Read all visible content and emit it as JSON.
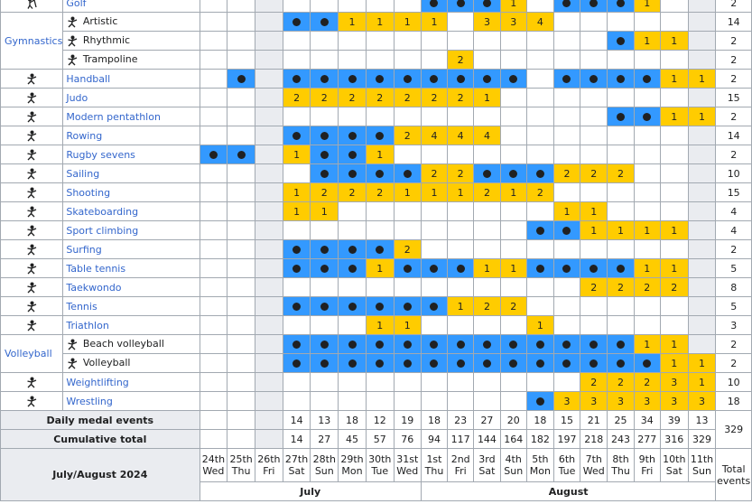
{
  "days": [
    {
      "d": "24th",
      "w": "Wed"
    },
    {
      "d": "25th",
      "w": "Thu"
    },
    {
      "d": "26th",
      "w": "Fri"
    },
    {
      "d": "27th",
      "w": "Sat"
    },
    {
      "d": "28th",
      "w": "Sun"
    },
    {
      "d": "29th",
      "w": "Mon"
    },
    {
      "d": "30th",
      "w": "Tue"
    },
    {
      "d": "31st",
      "w": "Wed"
    },
    {
      "d": "1st",
      "w": "Thu"
    },
    {
      "d": "2nd",
      "w": "Fri"
    },
    {
      "d": "3rd",
      "w": "Sat"
    },
    {
      "d": "4th",
      "w": "Sun"
    },
    {
      "d": "5th",
      "w": "Mon"
    },
    {
      "d": "6th",
      "w": "Tue"
    },
    {
      "d": "7th",
      "w": "Wed"
    },
    {
      "d": "8th",
      "w": "Thu"
    },
    {
      "d": "9th",
      "w": "Fri"
    },
    {
      "d": "10th",
      "w": "Sat"
    },
    {
      "d": "11th",
      "w": "Sun"
    }
  ],
  "gray_columns": [
    2,
    18
  ],
  "colors": {
    "event": "#3399ff",
    "final": "#ffcc00",
    "gray": "#eaecf0",
    "link": "#3366cc"
  },
  "rows": [
    {
      "name": "Golf",
      "icon": "golf-icon",
      "total": "2",
      "cells": [
        "",
        "",
        "",
        "",
        "",
        "",
        "",
        "",
        "e",
        "e",
        "e",
        "1",
        "",
        "e",
        "e",
        "e",
        "1",
        "",
        ""
      ]
    },
    {
      "group": "Gymnastics",
      "name": "Artistic",
      "icon": "gymnastics-artistic-icon",
      "total": "14",
      "cells": [
        "",
        "",
        "",
        "e",
        "e",
        "1",
        "1",
        "1",
        "1",
        "",
        "3",
        "3",
        "4",
        "",
        "",
        "",
        "",
        "",
        ""
      ]
    },
    {
      "group": "Gymnastics",
      "name": "Rhythmic",
      "icon": "gymnastics-rhythmic-icon",
      "total": "2",
      "cells": [
        "",
        "",
        "",
        "",
        "",
        "",
        "",
        "",
        "",
        "",
        "",
        "",
        "",
        "",
        "",
        "e",
        "1",
        "1",
        ""
      ]
    },
    {
      "group": "Gymnastics",
      "name": "Trampoline",
      "icon": "trampoline-icon",
      "total": "2",
      "cells": [
        "",
        "",
        "",
        "",
        "",
        "",
        "",
        "",
        "",
        "2",
        "",
        "",
        "",
        "",
        "",
        "",
        "",
        "",
        ""
      ]
    },
    {
      "name": "Handball",
      "icon": "handball-icon",
      "total": "2",
      "cells": [
        "",
        "e",
        "",
        "e",
        "e",
        "e",
        "e",
        "e",
        "e",
        "e",
        "e",
        "e",
        "",
        "e",
        "e",
        "e",
        "e",
        "1",
        "1"
      ]
    },
    {
      "name": "Judo",
      "icon": "judo-icon",
      "total": "15",
      "cells": [
        "",
        "",
        "",
        "2",
        "2",
        "2",
        "2",
        "2",
        "2",
        "2",
        "1",
        "",
        "",
        "",
        "",
        "",
        "",
        "",
        ""
      ]
    },
    {
      "name": "Modern pentathlon",
      "icon": "modern-pentathlon-icon",
      "total": "2",
      "cells": [
        "",
        "",
        "",
        "",
        "",
        "",
        "",
        "",
        "",
        "",
        "",
        "",
        "",
        "",
        "",
        "e",
        "e",
        "1",
        "1"
      ]
    },
    {
      "name": "Rowing",
      "icon": "rowing-icon",
      "total": "14",
      "cells": [
        "",
        "",
        "",
        "e",
        "e",
        "e",
        "e",
        "2",
        "4",
        "4",
        "4",
        "",
        "",
        "",
        "",
        "",
        "",
        "",
        ""
      ]
    },
    {
      "name": "Rugby sevens",
      "icon": "rugby-icon",
      "total": "2",
      "cells": [
        "e",
        "e",
        "",
        "1",
        "e",
        "e",
        "1",
        "",
        "",
        "",
        "",
        "",
        "",
        "",
        "",
        "",
        "",
        "",
        ""
      ]
    },
    {
      "name": "Sailing",
      "icon": "sailing-icon",
      "total": "10",
      "cells": [
        "",
        "",
        "",
        "",
        "e",
        "e",
        "e",
        "e",
        "2",
        "2",
        "e",
        "e",
        "e",
        "2",
        "2",
        "2",
        "",
        "",
        ""
      ]
    },
    {
      "name": "Shooting",
      "icon": "shooting-icon",
      "total": "15",
      "cells": [
        "",
        "",
        "",
        "1",
        "2",
        "2",
        "2",
        "1",
        "1",
        "1",
        "2",
        "1",
        "2",
        "",
        "",
        "",
        "",
        "",
        ""
      ]
    },
    {
      "name": "Skateboarding",
      "icon": "skateboarding-icon",
      "total": "4",
      "cells": [
        "",
        "",
        "",
        "1",
        "1",
        "",
        "",
        "",
        "",
        "",
        "",
        "",
        "",
        "1",
        "1",
        "",
        "",
        "",
        ""
      ]
    },
    {
      "name": "Sport climbing",
      "icon": "climbing-icon",
      "total": "4",
      "cells": [
        "",
        "",
        "",
        "",
        "",
        "",
        "",
        "",
        "",
        "",
        "",
        "",
        "e",
        "e",
        "1",
        "1",
        "1",
        "1",
        ""
      ]
    },
    {
      "name": "Surfing",
      "icon": "surfing-icon",
      "total": "2",
      "cells": [
        "",
        "",
        "",
        "e",
        "e",
        "e",
        "e",
        "2",
        "",
        "",
        "",
        "",
        "",
        "",
        "",
        "",
        "",
        "",
        ""
      ]
    },
    {
      "name": "Table tennis",
      "icon": "table-tennis-icon",
      "total": "5",
      "cells": [
        "",
        "",
        "",
        "e",
        "e",
        "e",
        "1",
        "e",
        "e",
        "e",
        "1",
        "1",
        "e",
        "e",
        "e",
        "e",
        "1",
        "1",
        ""
      ]
    },
    {
      "name": "Taekwondo",
      "icon": "taekwondo-icon",
      "total": "8",
      "cells": [
        "",
        "",
        "",
        "",
        "",
        "",
        "",
        "",
        "",
        "",
        "",
        "",
        "",
        "",
        "2",
        "2",
        "2",
        "2",
        ""
      ]
    },
    {
      "name": "Tennis",
      "icon": "tennis-icon",
      "total": "5",
      "cells": [
        "",
        "",
        "",
        "e",
        "e",
        "e",
        "e",
        "e",
        "e",
        "1",
        "2",
        "2",
        "",
        "",
        "",
        "",
        "",
        "",
        ""
      ]
    },
    {
      "name": "Triathlon",
      "icon": "triathlon-icon",
      "total": "3",
      "cells": [
        "",
        "",
        "",
        "",
        "",
        "",
        "1",
        "1",
        "",
        "",
        "",
        "",
        "1",
        "",
        "",
        "",
        "",
        "",
        ""
      ]
    },
    {
      "group": "Volleyball",
      "name": "Beach volleyball",
      "icon": "beach-volleyball-icon",
      "total": "2",
      "cells": [
        "",
        "",
        "",
        "e",
        "e",
        "e",
        "e",
        "e",
        "e",
        "e",
        "e",
        "e",
        "e",
        "e",
        "e",
        "e",
        "1",
        "1",
        ""
      ]
    },
    {
      "group": "Volleyball",
      "name": "Volleyball",
      "icon": "volleyball-icon",
      "total": "2",
      "cells": [
        "",
        "",
        "",
        "e",
        "e",
        "e",
        "e",
        "e",
        "e",
        "e",
        "e",
        "e",
        "e",
        "e",
        "e",
        "e",
        "e",
        "1",
        "1"
      ]
    },
    {
      "name": "Weightlifting",
      "icon": "weightlifting-icon",
      "total": "10",
      "cells": [
        "",
        "",
        "",
        "",
        "",
        "",
        "",
        "",
        "",
        "",
        "",
        "",
        "",
        "",
        "2",
        "2",
        "2",
        "3",
        "1"
      ]
    },
    {
      "name": "Wrestling",
      "icon": "wrestling-icon",
      "total": "18",
      "cells": [
        "",
        "",
        "",
        "",
        "",
        "",
        "",
        "",
        "",
        "",
        "",
        "",
        "e",
        "3",
        "3",
        "3",
        "3",
        "3",
        "3"
      ]
    }
  ],
  "daily_label": "Daily medal events",
  "daily": [
    "",
    "",
    "",
    "14",
    "13",
    "18",
    "12",
    "19",
    "18",
    "23",
    "27",
    "20",
    "18",
    "15",
    "21",
    "25",
    "34",
    "39",
    "13"
  ],
  "cumulative_label": "Cumulative total",
  "cumulative": [
    "",
    "",
    "",
    "14",
    "27",
    "45",
    "57",
    "76",
    "94",
    "117",
    "144",
    "164",
    "182",
    "197",
    "218",
    "243",
    "277",
    "316",
    "329"
  ],
  "grand_total": "329",
  "footer_label": "July/August 2024",
  "total_events_label": "Total events",
  "months": [
    {
      "label": "July",
      "span": 8
    },
    {
      "label": "August",
      "span": 11
    }
  ]
}
